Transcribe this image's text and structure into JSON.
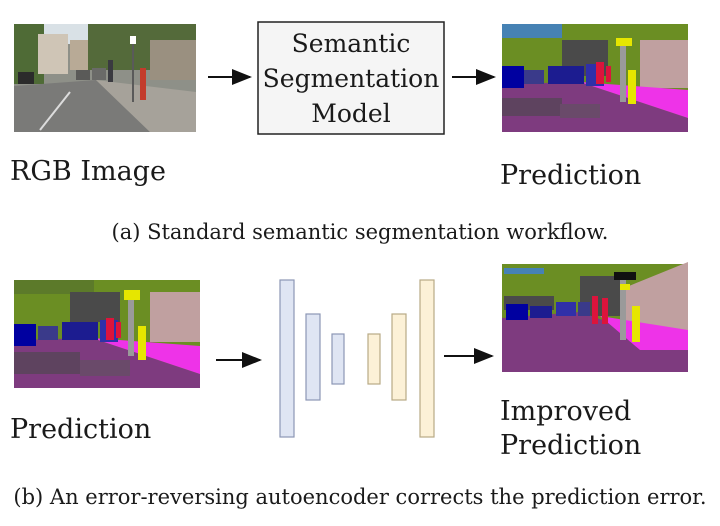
{
  "top": {
    "input_label": "RGB  Image",
    "model_box_lines": [
      "Semantic",
      "Segmentation",
      "Model"
    ],
    "output_label": "Prediction",
    "caption": "(a) Standard semantic segmentation workflow."
  },
  "bottom": {
    "input_label": "Prediction",
    "output_label_lines": [
      "Improved",
      "Prediction"
    ],
    "caption": "(b) An error-reversing autoencoder corrects the prediction error."
  },
  "colors": {
    "encoder_fill": "#dfe5f3",
    "encoder_stroke": "#8c97b5",
    "decoder_fill": "#fcf1d7",
    "decoder_stroke": "#b8aa86",
    "box_fill": "#f5f5f5",
    "road": "#7e3b7f",
    "sidewalk": "#ee33e8",
    "vegetation": "#6b8e23",
    "building": "#4a4a4a",
    "sky": "#4682b4",
    "car": "#0000a0",
    "person": "#dc143c",
    "pole": "#e6e600",
    "wall": "#c0a0a0"
  }
}
